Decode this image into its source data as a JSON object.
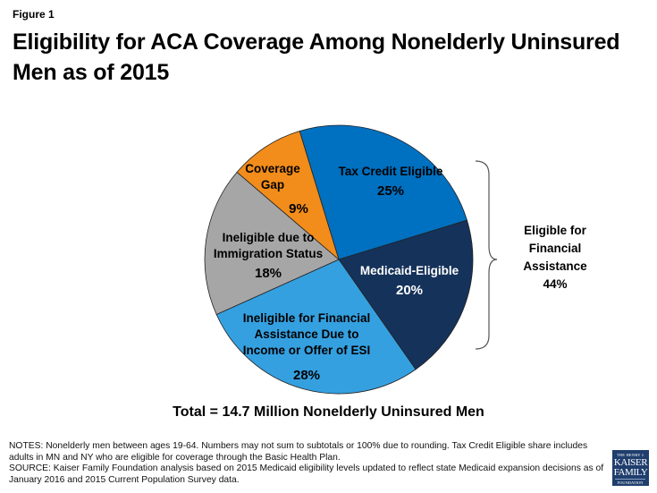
{
  "figure_label": "Figure 1",
  "title_line1": "Eligibility for ACA Coverage Among Nonelderly Uninsured",
  "title_line2": "Men as of 2015",
  "chart_data": {
    "type": "pie",
    "title": "Eligibility for ACA Coverage Among Nonelderly Uninsured Men as of 2015",
    "unit": "%",
    "slices": [
      {
        "name": "Tax Credit Eligible",
        "label_lines": [
          "Tax Credit Eligible"
        ],
        "value": 25,
        "value_label": "25%",
        "color": "#0070c0",
        "text_color": "#000000"
      },
      {
        "name": "Medicaid-Eligible",
        "label_lines": [
          "Medicaid-Eligible"
        ],
        "value": 20,
        "value_label": "20%",
        "color": "#15325a",
        "text_color": "#ffffff"
      },
      {
        "name": "Ineligible for Financial Assistance Due to Income or Offer of ESI",
        "label_lines": [
          "Ineligible for Financial",
          "Assistance Due to",
          "Income or Offer of ESI"
        ],
        "value": 28,
        "value_label": "28%",
        "color": "#35a0e0",
        "text_color": "#000000"
      },
      {
        "name": "Ineligible due to Immigration Status",
        "label_lines": [
          "Ineligible due to",
          "Immigration Status"
        ],
        "value": 18,
        "value_label": "18%",
        "color": "#a6a6a6",
        "text_color": "#000000"
      },
      {
        "name": "Coverage Gap",
        "label_lines": [
          "Coverage",
          "Gap"
        ],
        "value": 9,
        "value_label": "9%",
        "color": "#f28c1a",
        "text_color": "#000000"
      }
    ],
    "annotation": {
      "text_lines": [
        "Eligible for",
        "Financial",
        "Assistance",
        "44%"
      ],
      "groups": [
        "Tax Credit Eligible",
        "Medicaid-Eligible"
      ],
      "value": 44
    },
    "total_note": "Total = 14.7 Million Nonelderly Uninsured Men"
  },
  "notes": {
    "line1": "NOTES: Nonelderly men between ages 19-64. Numbers may not sum to subtotals or 100% due to rounding. Tax Credit Eligible share includes",
    "line2": "adults in MN and NY who are eligible for coverage through the Basic Health Plan.",
    "line3": "SOURCE: Kaiser Family Foundation analysis based on 2015 Medicaid eligibility levels updated to reflect state Medicaid expansion decisions as of",
    "line4": "January 2016 and 2015 Current Population Survey data."
  },
  "logo": {
    "line1": "THE HENRY J.",
    "line2": "KAISER",
    "line3": "FAMILY",
    "line4": "FOUNDATION"
  }
}
